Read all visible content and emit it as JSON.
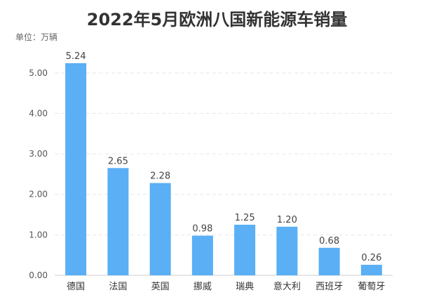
{
  "chart_data": {
    "type": "bar",
    "title": "2022年5月欧洲八国新能源车销量",
    "unit_label": "单位：万辆",
    "categories": [
      "德国",
      "法国",
      "英国",
      "挪威",
      "瑞典",
      "意大利",
      "西班牙",
      "葡萄牙"
    ],
    "values": [
      5.24,
      2.65,
      2.28,
      0.98,
      1.25,
      1.2,
      0.68,
      0.26
    ],
    "data_labels": [
      "5.24",
      "2.65",
      "2.28",
      "0.98",
      "1.25",
      "1.20",
      "0.68",
      "0.26"
    ],
    "yticks": [
      "0.00",
      "1.00",
      "2.00",
      "3.00",
      "4.00",
      "5.00"
    ],
    "ylim": [
      0,
      5.5
    ],
    "grid": true,
    "bar_color": "#5aaff5"
  }
}
